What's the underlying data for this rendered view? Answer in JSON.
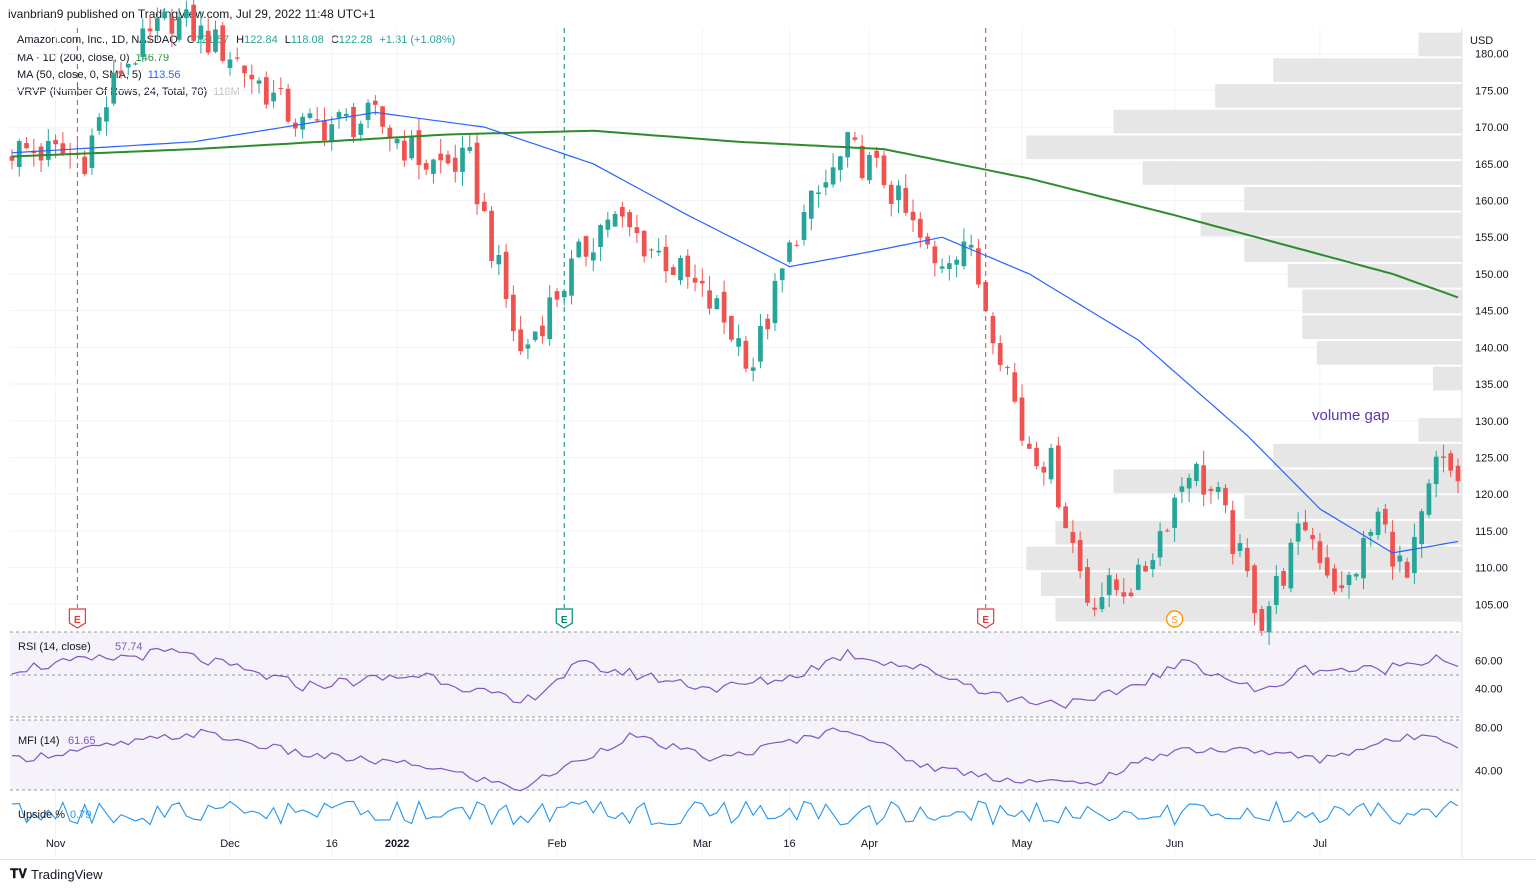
{
  "header": {
    "published": "ivanbrian9 published on TradingView.com, Jul 29, 2022 11:48 UTC+1"
  },
  "legend": {
    "symbol": "Amazon.com, Inc., 1D, NASDAQ",
    "o_label": "O",
    "o": "121.57",
    "h_label": "H",
    "h": "122.84",
    "l_label": "L",
    "l": "118.08",
    "c_label": "C",
    "c": "122.28",
    "change": "+1.31 (+1.08%)",
    "ma200_label": "MA · 1D (200, close, 0)",
    "ma200_value": "146.79",
    "ma50_label": "MA (50, close, 0, SMA, 5)",
    "ma50_value": "113.56",
    "vrvp_label": "VRVP (Number Of Rows, 24, Total, 70)",
    "vrvp_value": "118M"
  },
  "rsi_panel": {
    "label": "RSI (14, close)",
    "value": "57.74"
  },
  "mfi_panel": {
    "label": "MFI (14)",
    "value": "61.65"
  },
  "upside_panel": {
    "label": "Upside %",
    "value": "0.79"
  },
  "annotation": "volume gap",
  "currency": "USD",
  "colors": {
    "up": "#26a69a",
    "down": "#ef5350",
    "ma50": "#2962ff",
    "ma200": "#2e8b2e",
    "rsi": "#7e57c2",
    "upside": "#2196f3",
    "volume_profile": "#e6e6e6",
    "earnings": "#e53935",
    "dividend": "#00897b",
    "split": "#ff9800"
  },
  "footer": {
    "brand": "TradingView"
  },
  "chart_data": {
    "type": "candlestick",
    "title": "Amazon.com, Inc., 1D, NASDAQ",
    "y_axis": {
      "ylim": [
        101.5,
        183.5
      ],
      "ticks": [
        105,
        110,
        115,
        120,
        125,
        130,
        135,
        140,
        145,
        150,
        155,
        160,
        165,
        170,
        175,
        180
      ]
    },
    "x_axis": {
      "ticks": [
        "Nov",
        "Dec",
        "16",
        "2022",
        "Feb",
        "Mar",
        "16",
        "Apr",
        "May",
        "Jun",
        "Jul"
      ]
    },
    "candle_count": 200,
    "series": [
      {
        "name": "MA 200",
        "key_points": [
          {
            "bar": 0,
            "value": 166
          },
          {
            "bar": 25,
            "value": 167
          },
          {
            "bar": 60,
            "value": 169
          },
          {
            "bar": 80,
            "value": 169.5
          },
          {
            "bar": 100,
            "value": 168
          },
          {
            "bar": 120,
            "value": 167
          },
          {
            "bar": 140,
            "value": 163
          },
          {
            "bar": 160,
            "value": 158
          },
          {
            "bar": 175,
            "value": 154
          },
          {
            "bar": 190,
            "value": 150
          },
          {
            "bar": 199,
            "value": 146.8
          }
        ]
      },
      {
        "name": "MA 50",
        "key_points": [
          {
            "bar": 0,
            "value": 166.5
          },
          {
            "bar": 25,
            "value": 168
          },
          {
            "bar": 50,
            "value": 172
          },
          {
            "bar": 65,
            "value": 170
          },
          {
            "bar": 80,
            "value": 165
          },
          {
            "bar": 93,
            "value": 158
          },
          {
            "bar": 107,
            "value": 151
          },
          {
            "bar": 118,
            "value": 153
          },
          {
            "bar": 128,
            "value": 155
          },
          {
            "bar": 140,
            "value": 150
          },
          {
            "bar": 155,
            "value": 141
          },
          {
            "bar": 170,
            "value": 128
          },
          {
            "bar": 180,
            "value": 118
          },
          {
            "bar": 190,
            "value": 112
          },
          {
            "bar": 199,
            "value": 113.56
          }
        ]
      },
      {
        "name": "Close",
        "key_points": [
          {
            "bar": 0,
            "value": 167
          },
          {
            "bar": 10,
            "value": 166
          },
          {
            "bar": 15,
            "value": 178
          },
          {
            "bar": 22,
            "value": 185
          },
          {
            "bar": 30,
            "value": 180
          },
          {
            "bar": 40,
            "value": 170
          },
          {
            "bar": 50,
            "value": 171
          },
          {
            "bar": 57,
            "value": 165
          },
          {
            "bar": 63,
            "value": 165
          },
          {
            "bar": 70,
            "value": 139
          },
          {
            "bar": 76,
            "value": 149
          },
          {
            "bar": 82,
            "value": 158
          },
          {
            "bar": 90,
            "value": 152
          },
          {
            "bar": 97,
            "value": 145
          },
          {
            "bar": 102,
            "value": 138
          },
          {
            "bar": 108,
            "value": 156
          },
          {
            "bar": 115,
            "value": 167
          },
          {
            "bar": 120,
            "value": 163
          },
          {
            "bar": 127,
            "value": 151
          },
          {
            "bar": 131,
            "value": 155
          },
          {
            "bar": 137,
            "value": 137
          },
          {
            "bar": 139,
            "value": 128
          },
          {
            "bar": 143,
            "value": 124
          },
          {
            "bar": 148,
            "value": 106
          },
          {
            "bar": 155,
            "value": 108
          },
          {
            "bar": 162,
            "value": 124
          },
          {
            "bar": 166,
            "value": 119
          },
          {
            "bar": 172,
            "value": 103
          },
          {
            "bar": 178,
            "value": 116
          },
          {
            "bar": 183,
            "value": 106
          },
          {
            "bar": 188,
            "value": 117
          },
          {
            "bar": 192,
            "value": 108
          },
          {
            "bar": 196,
            "value": 124
          },
          {
            "bar": 199,
            "value": 122.28
          }
        ]
      },
      {
        "name": "RSI (14, close)",
        "ylim": [
          20,
          80
        ],
        "ticks": [
          40,
          60
        ],
        "key_points": [
          {
            "bar": 0,
            "value": 54
          },
          {
            "bar": 22,
            "value": 66
          },
          {
            "bar": 40,
            "value": 42
          },
          {
            "bar": 57,
            "value": 50
          },
          {
            "bar": 70,
            "value": 29
          },
          {
            "bar": 78,
            "value": 57
          },
          {
            "bar": 97,
            "value": 40
          },
          {
            "bar": 107,
            "value": 48
          },
          {
            "bar": 115,
            "value": 65
          },
          {
            "bar": 127,
            "value": 52
          },
          {
            "bar": 137,
            "value": 33
          },
          {
            "bar": 148,
            "value": 29
          },
          {
            "bar": 162,
            "value": 59
          },
          {
            "bar": 172,
            "value": 37
          },
          {
            "bar": 178,
            "value": 54
          },
          {
            "bar": 188,
            "value": 53
          },
          {
            "bar": 196,
            "value": 63
          },
          {
            "bar": 199,
            "value": 57.74
          }
        ]
      },
      {
        "name": "MFI (14)",
        "ylim": [
          20,
          85
        ],
        "ticks": [
          40,
          80
        ],
        "key_points": [
          {
            "bar": 0,
            "value": 50
          },
          {
            "bar": 26,
            "value": 75
          },
          {
            "bar": 40,
            "value": 55
          },
          {
            "bar": 57,
            "value": 44
          },
          {
            "bar": 70,
            "value": 23
          },
          {
            "bar": 85,
            "value": 72
          },
          {
            "bar": 97,
            "value": 50
          },
          {
            "bar": 115,
            "value": 80
          },
          {
            "bar": 125,
            "value": 45
          },
          {
            "bar": 137,
            "value": 32
          },
          {
            "bar": 148,
            "value": 27
          },
          {
            "bar": 160,
            "value": 60
          },
          {
            "bar": 172,
            "value": 58
          },
          {
            "bar": 180,
            "value": 50
          },
          {
            "bar": 188,
            "value": 65
          },
          {
            "bar": 196,
            "value": 75
          },
          {
            "bar": 199,
            "value": 61.65
          }
        ]
      }
    ],
    "earnings_markers": [
      {
        "bar": 9,
        "type": "E"
      },
      {
        "bar": 76,
        "type": "E"
      },
      {
        "bar": 134,
        "type": "E"
      }
    ],
    "split_marker": {
      "bar": 160,
      "label": "S"
    },
    "volume_profile": [
      {
        "price_low": 102.5,
        "price_high": 106,
        "width": 0.28
      },
      {
        "price_low": 106,
        "price_high": 109.5,
        "width": 0.29
      },
      {
        "price_low": 109.5,
        "price_high": 113,
        "width": 0.3
      },
      {
        "price_low": 113,
        "price_high": 116.5,
        "width": 0.28
      },
      {
        "price_low": 116.5,
        "price_high": 120,
        "width": 0.15
      },
      {
        "price_low": 120,
        "price_high": 123.5,
        "width": 0.24
      },
      {
        "price_low": 123.5,
        "price_high": 127,
        "width": 0.13
      },
      {
        "price_low": 127,
        "price_high": 130.5,
        "width": 0.03
      },
      {
        "price_low": 134,
        "price_high": 137.5,
        "width": 0.02
      },
      {
        "price_low": 137.5,
        "price_high": 141,
        "width": 0.1
      },
      {
        "price_low": 141,
        "price_high": 144.5,
        "width": 0.11
      },
      {
        "price_low": 144.5,
        "price_high": 148,
        "width": 0.11
      },
      {
        "price_low": 148,
        "price_high": 151.5,
        "width": 0.12
      },
      {
        "price_low": 151.5,
        "price_high": 155,
        "width": 0.15
      },
      {
        "price_low": 155,
        "price_high": 158.5,
        "width": 0.18
      },
      {
        "price_low": 158.5,
        "price_high": 162,
        "width": 0.15
      },
      {
        "price_low": 162,
        "price_high": 165.5,
        "width": 0.22
      },
      {
        "price_low": 165.5,
        "price_high": 169,
        "width": 0.3
      },
      {
        "price_low": 169,
        "price_high": 172.5,
        "width": 0.24
      },
      {
        "price_low": 172.5,
        "price_high": 176,
        "width": 0.17
      },
      {
        "price_low": 176,
        "price_high": 179.5,
        "width": 0.13
      },
      {
        "price_low": 179.5,
        "price_high": 183,
        "width": 0.03
      }
    ]
  }
}
